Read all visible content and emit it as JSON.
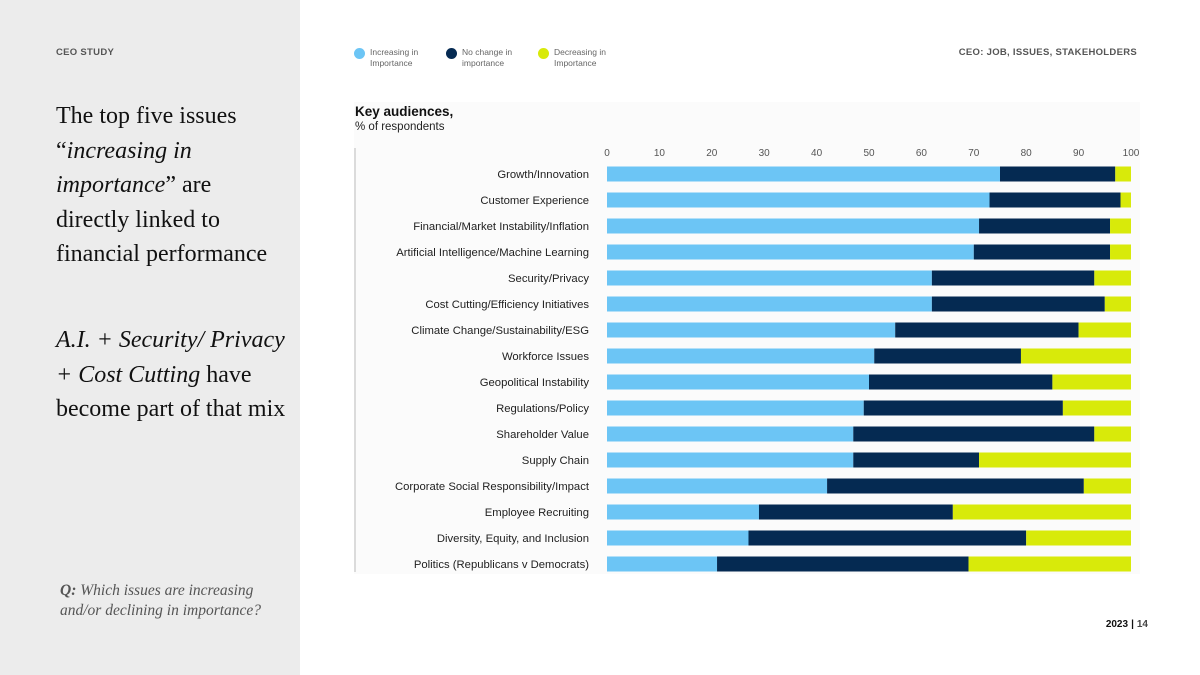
{
  "left": {
    "section_label": "CEO STUDY",
    "headline_line1": "The top five  issues",
    "headline_quote_open": "“",
    "headline_italic": "increasing in importance",
    "headline_quote_close": "”",
    "headline_rest": " are directly linked to financial performance",
    "subline_italic": "A.I. + Security/ Privacy + Cost Cutting",
    "subline_rest": " have become part of that mix",
    "question_prefix": "Q:",
    "question_text": " Which issues are increasing and/or declining in importance?"
  },
  "header": {
    "right_label": "CEO: JOB, ISSUES, STAKEHOLDERS"
  },
  "legend": [
    {
      "label": "Increasing in\nImportance",
      "color": "#6cc5f5"
    },
    {
      "label": "No change in\nimportance",
      "color": "#052a52"
    },
    {
      "label": "Decreasing in\nImportance",
      "color": "#d8ea0a"
    }
  ],
  "footer": {
    "year": "2023",
    "separator": "|",
    "page": "14"
  },
  "chart_data": {
    "type": "bar",
    "orientation": "horizontal",
    "stacked": true,
    "title": "Key audiences,",
    "subtitle": "% of respondents",
    "xlim": [
      0,
      100
    ],
    "xticks": [
      0,
      10,
      20,
      30,
      40,
      50,
      60,
      70,
      80,
      90,
      100
    ],
    "grid": false,
    "legend_position": "top-left",
    "categories": [
      "Growth/Innovation",
      "Customer Experience",
      "Financial/Market Instability/Inflation",
      "Artificial Intelligence/Machine Learning",
      "Security/Privacy",
      "Cost Cutting/Efficiency Initiatives",
      "Climate Change/Sustainability/ESG",
      "Workforce Issues",
      "Geopolitical Instability",
      "Regulations/Policy",
      "Shareholder Value",
      "Supply Chain",
      "Corporate Social Responsibility/Impact",
      "Employee Recruiting",
      "Diversity, Equity, and Inclusion",
      "Politics (Republicans v Democrats)"
    ],
    "series": [
      {
        "name": "Increasing in Importance",
        "color": "#6cc5f5",
        "values": [
          75,
          73,
          71,
          70,
          62,
          62,
          55,
          51,
          50,
          49,
          47,
          47,
          42,
          29,
          27,
          21
        ]
      },
      {
        "name": "No change in importance",
        "color": "#052a52",
        "values": [
          22,
          25,
          25,
          26,
          31,
          33,
          35,
          28,
          35,
          38,
          46,
          24,
          49,
          37,
          53,
          48
        ]
      },
      {
        "name": "Decreasing in Importance",
        "color": "#d8ea0a",
        "values": [
          3,
          2,
          4,
          4,
          7,
          5,
          10,
          21,
          15,
          13,
          7,
          29,
          9,
          34,
          20,
          31
        ]
      }
    ]
  }
}
